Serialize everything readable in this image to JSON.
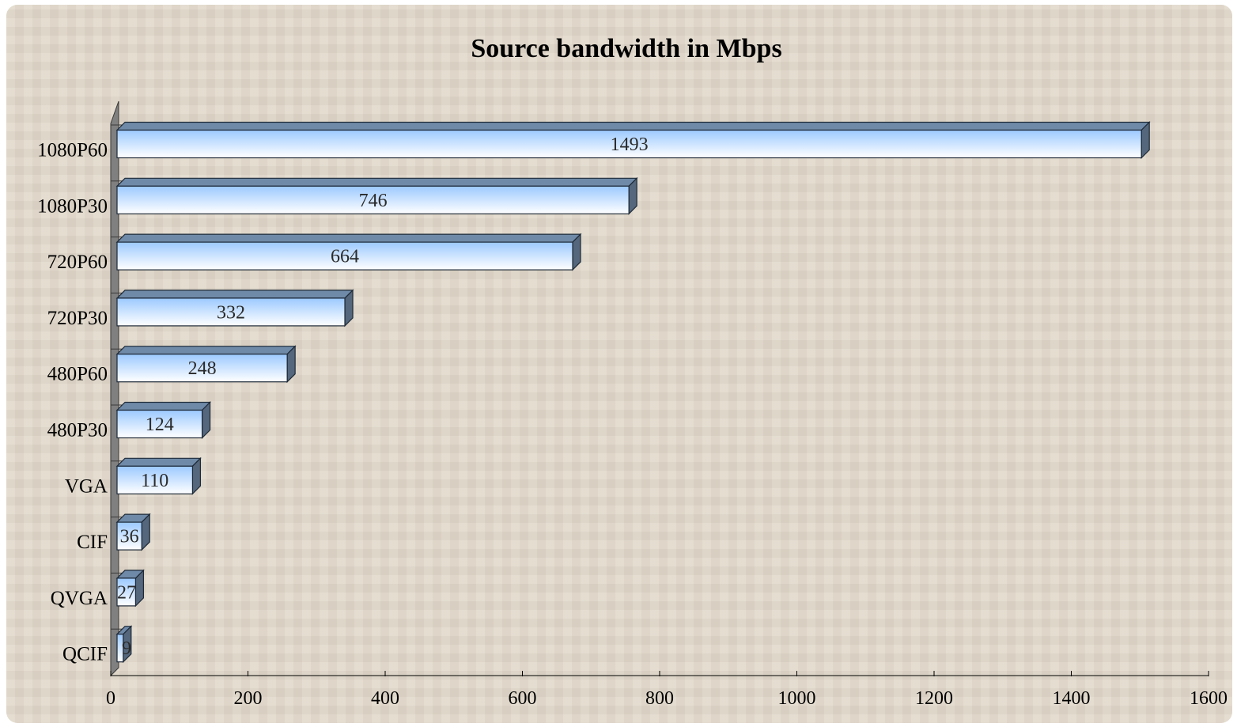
{
  "chart_data": {
    "type": "bar",
    "orientation": "horizontal",
    "style": "3d",
    "title": "Source bandwidth in Mbps",
    "xlabel": "",
    "ylabel": "",
    "categories": [
      "1080P60",
      "1080P30",
      "720P60",
      "720P30",
      "480P60",
      "480P30",
      "VGA",
      "CIF",
      "QVGA",
      "QCIF"
    ],
    "values": [
      1493,
      746,
      664,
      332,
      248,
      124,
      110,
      36,
      27,
      9
    ],
    "data_labels": [
      "1493",
      "746",
      "664",
      "332",
      "248",
      "124",
      "110",
      "36",
      "27",
      "9"
    ],
    "xlim": [
      0,
      1600
    ],
    "xticks": [
      0,
      200,
      400,
      600,
      800,
      1000,
      1200,
      1400,
      1600
    ],
    "xtick_labels": [
      "0",
      "200",
      "400",
      "600",
      "800",
      "1000",
      "1200",
      "1400",
      "1600"
    ],
    "grid": false,
    "legend": "none",
    "colors": {
      "background": "#e2d9cb",
      "bar_front_top": "#9cc9ff",
      "bar_front_bottom": "#ffffff",
      "bar_top": "#6f8aa8",
      "bar_side": "#55677c",
      "wall": "#808080"
    }
  }
}
